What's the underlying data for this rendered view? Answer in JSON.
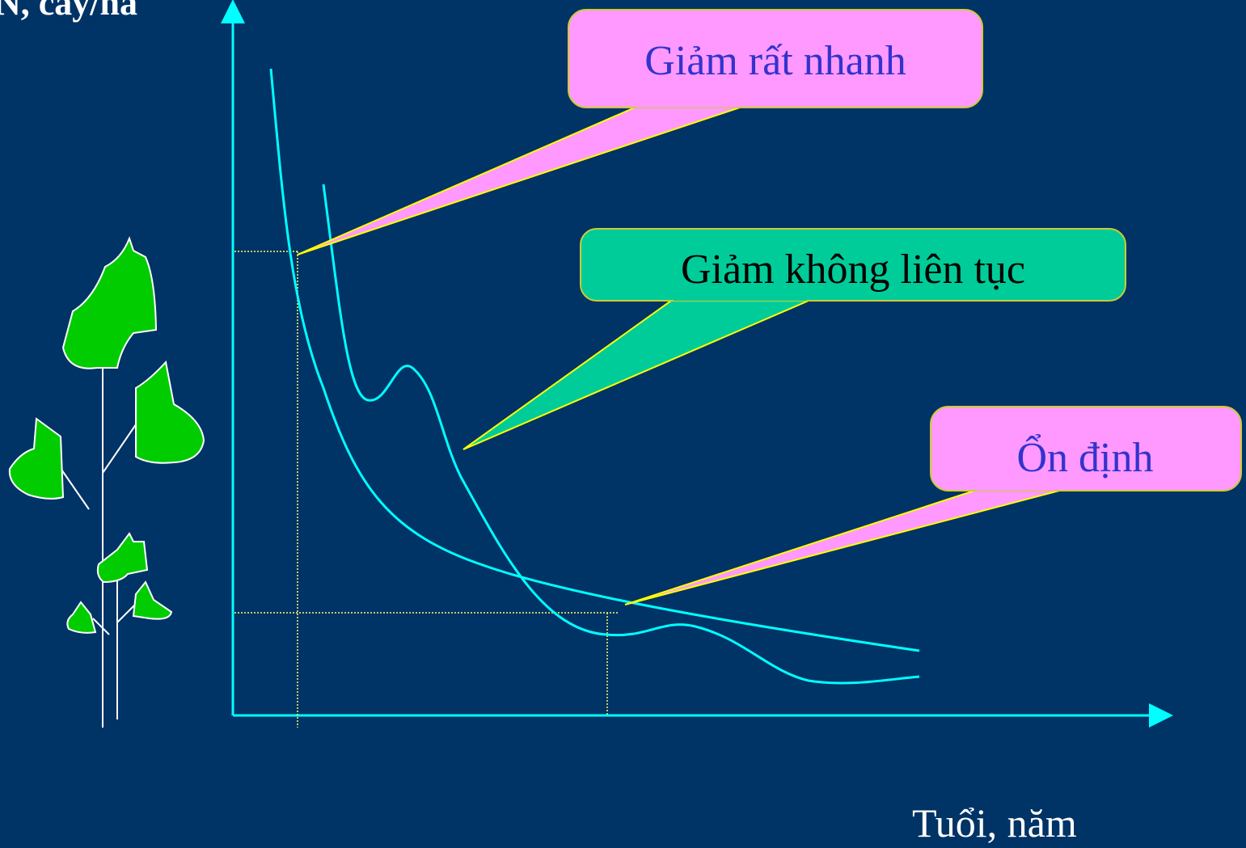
{
  "axes": {
    "y_label": "N, cây/ha",
    "x_label": "Tuổi, năm"
  },
  "callouts": [
    {
      "label": "Giảm rất nhanh"
    },
    {
      "label": "Giảm không liên tục"
    },
    {
      "label": "Ổn định"
    }
  ]
}
